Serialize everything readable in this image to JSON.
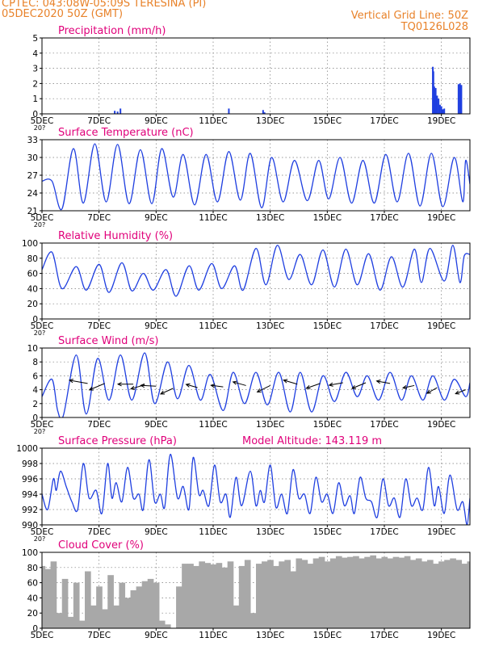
{
  "header": {
    "line1": "CPTEC:   043:08W-05:09S   TERESINA (PI)",
    "line2": "05DEC2020 50Z (GMT)",
    "grid_note": "Vertical Grid Line: 50Z",
    "code": "TQ0126L028"
  },
  "colors": {
    "header": "#e8822a",
    "panel_title": "#e0007a",
    "series": "#1f3fe0",
    "cloud": "#a8a8a8",
    "wind_arrow": "#000000"
  },
  "x_axis": {
    "tick_labels": [
      "5DEC",
      "7DEC",
      "9DEC",
      "11DEC",
      "13DEC",
      "15DEC",
      "17DEC",
      "19DEC"
    ],
    "tick_days": [
      5,
      7,
      9,
      11,
      13,
      15,
      17,
      19
    ],
    "range_days": [
      5,
      20
    ],
    "stub_label": "20?"
  },
  "chart_data": [
    {
      "id": "precipitation",
      "type": "bar",
      "title": "Precipitation (mm/h)",
      "ylim": [
        0,
        5
      ],
      "yticks": [
        0,
        1,
        2,
        3,
        4,
        5
      ],
      "x": [
        7.55,
        7.65,
        7.75,
        11.55,
        12.75,
        12.8,
        18.7,
        18.72,
        18.75,
        18.78,
        18.8,
        18.85,
        18.9,
        18.95,
        19.0,
        19.05,
        19.1,
        19.6,
        19.65,
        19.7
      ],
      "values": [
        0.2,
        0.15,
        0.35,
        0.35,
        0.25,
        0.1,
        3.1,
        2.8,
        1.8,
        1.6,
        1.7,
        1.2,
        1.0,
        0.6,
        0.5,
        0.3,
        0.35,
        1.95,
        2.0,
        1.9
      ]
    },
    {
      "id": "temperature",
      "type": "line",
      "title": "Surface Temperature (nC)",
      "ylim": [
        21,
        33
      ],
      "yticks": [
        21,
        24,
        27,
        30,
        33
      ],
      "peak_days": [
        5.35,
        6.1,
        6.85,
        7.65,
        8.45,
        9.2,
        9.95,
        10.75,
        11.55,
        12.3,
        13.05,
        13.85,
        14.7,
        15.45,
        16.25,
        17.05,
        17.85,
        18.65,
        19.45,
        19.85
      ],
      "peak_values": [
        26,
        31.5,
        32.3,
        32.2,
        31.3,
        31.5,
        30.5,
        30.5,
        31,
        30.7,
        30,
        29.5,
        29.5,
        30,
        29.5,
        30.5,
        30.7,
        30.7,
        30,
        29.5
      ],
      "trough_days": [
        5.0,
        5.7,
        6.45,
        7.25,
        8.05,
        8.85,
        9.6,
        10.35,
        11.15,
        11.95,
        12.7,
        13.45,
        14.3,
        15.05,
        15.85,
        16.65,
        17.45,
        18.25,
        19.05,
        19.75,
        20.0
      ],
      "trough_values": [
        26,
        21.3,
        22.3,
        22.5,
        22.2,
        22.2,
        23.3,
        22,
        22.5,
        22.8,
        21.5,
        22.5,
        22.7,
        23,
        22.3,
        22.3,
        22.5,
        21.8,
        21.7,
        22.5,
        25.5
      ]
    },
    {
      "id": "humidity",
      "type": "line",
      "title": "Relative Humidity (%)",
      "ylim": [
        0,
        100
      ],
      "yticks": [
        0,
        20,
        40,
        60,
        80,
        100
      ],
      "peak_days": [
        5.0,
        5.35,
        6.2,
        7.0,
        7.8,
        8.55,
        9.35,
        10.15,
        10.95,
        11.75,
        12.5,
        13.25,
        14.05,
        14.85,
        15.65,
        16.45,
        17.25,
        18.05,
        18.6,
        19.4,
        19.8,
        20.0
      ],
      "peak_values": [
        65,
        88,
        69,
        72,
        74,
        60,
        65,
        70,
        73,
        70,
        93,
        97,
        85,
        91,
        92,
        86,
        82,
        92,
        93,
        97,
        83,
        85
      ],
      "trough_days": [
        5.7,
        6.55,
        7.35,
        8.15,
        8.9,
        9.7,
        10.5,
        11.3,
        12.05,
        12.85,
        13.65,
        14.45,
        15.25,
        16.05,
        16.85,
        17.65,
        18.3,
        19.1,
        19.65
      ],
      "trough_values": [
        40,
        38,
        35,
        37,
        38,
        30,
        38,
        40,
        38,
        45,
        52,
        45,
        42,
        45,
        38,
        42,
        48,
        50,
        48
      ]
    },
    {
      "id": "wind",
      "type": "line",
      "title": "Surface Wind (m/s)",
      "ylim": [
        0,
        10
      ],
      "yticks": [
        0,
        2,
        4,
        6,
        8,
        10
      ],
      "peak_days": [
        5.0,
        5.35,
        6.2,
        6.95,
        7.75,
        8.6,
        9.4,
        10.15,
        10.9,
        11.7,
        12.5,
        13.3,
        14.05,
        14.85,
        15.65,
        16.4,
        17.2,
        17.95,
        18.7,
        19.45,
        20.0
      ],
      "peak_values": [
        3,
        5.5,
        9,
        8.5,
        9,
        9.3,
        8,
        7.5,
        6.2,
        6.5,
        6.5,
        6.5,
        6.5,
        6,
        6.5,
        6,
        6.5,
        6,
        6,
        5.5,
        5
      ],
      "trough_days": [
        5.55,
        5.75,
        6.55,
        7.35,
        8.15,
        8.95,
        9.75,
        10.55,
        11.35,
        12.1,
        12.9,
        13.7,
        14.45,
        15.25,
        16.05,
        16.8,
        17.6,
        18.35,
        19.1,
        19.85
      ],
      "trough_values": [
        1,
        0.3,
        0.5,
        2.5,
        2.5,
        2.0,
        2.7,
        2.5,
        1.0,
        2.0,
        1.8,
        0.8,
        0.8,
        2.3,
        3,
        2.5,
        2.5,
        2.5,
        2.5,
        3
      ],
      "arrow_days": [
        6.6,
        7.2,
        8.2,
        8.6,
        9.0,
        9.6,
        10.45,
        11.35,
        12.15,
        13.0,
        13.95,
        14.75,
        15.55,
        16.35,
        17.2,
        18.05,
        18.85,
        19.85
      ],
      "arrow_values": [
        4.9,
        4.9,
        4.8,
        4.7,
        4.5,
        4.2,
        4.3,
        4.4,
        4.6,
        4.6,
        4.8,
        4.9,
        5.0,
        5.0,
        4.9,
        4.6,
        4.3,
        4.0
      ],
      "arrow_u": [
        -4.5,
        -3.8,
        -3.8,
        -3.4,
        -3.8,
        -3.1,
        -2.8,
        -3.0,
        -3.2,
        -3.2,
        -3.4,
        -3.4,
        -3.4,
        -3.4,
        -3.3,
        -2.8,
        -2.5,
        -2.5
      ],
      "arrow_v": [
        0.8,
        -1.6,
        0,
        -1.0,
        0.2,
        -1.4,
        0.8,
        0.4,
        0.9,
        -1.6,
        1.0,
        -1.2,
        -0.6,
        -1.4,
        0.6,
        -0.6,
        -1.4,
        -1.0
      ]
    },
    {
      "id": "pressure",
      "type": "line",
      "title": "Surface Pressure (hPa)",
      "annotation": "Model Altitude: 143.119 m",
      "ylim": [
        990,
        1000
      ],
      "yticks": [
        990,
        992,
        994,
        996,
        998,
        1000
      ],
      "peak_days": [
        5.0,
        5.4,
        5.65,
        6.05,
        6.45,
        6.9,
        7.3,
        7.6,
        8.0,
        8.4,
        8.75,
        9.15,
        9.5,
        9.95,
        10.3,
        10.65,
        11.05,
        11.45,
        11.8,
        12.3,
        12.65,
        13.0,
        13.4,
        13.8,
        14.2,
        14.6,
        15.0,
        15.4,
        15.8,
        16.15,
        16.55,
        16.95,
        17.35,
        17.75,
        18.15,
        18.55,
        18.9,
        19.3,
        19.75,
        20.0
      ],
      "peak_values": [
        994,
        996,
        997,
        993,
        998,
        994.5,
        998,
        995.5,
        997.5,
        994,
        998.5,
        994,
        999.2,
        995,
        998.8,
        994.5,
        997.8,
        994,
        996.2,
        997,
        994.5,
        997.8,
        994,
        997.2,
        994,
        996.2,
        994,
        995.5,
        993.8,
        996.2,
        993,
        996,
        993.5,
        996,
        993.5,
        997.5,
        995,
        996.5,
        993,
        993.5
      ],
      "trough_days": [
        5.2,
        5.5,
        5.85,
        6.25,
        6.65,
        7.1,
        7.45,
        7.8,
        8.2,
        8.55,
        8.95,
        9.3,
        9.75,
        10.15,
        10.5,
        10.85,
        11.25,
        11.6,
        12.0,
        12.5,
        12.8,
        13.2,
        13.6,
        14.0,
        14.4,
        14.8,
        15.2,
        15.6,
        15.95,
        16.35,
        16.75,
        17.15,
        17.55,
        17.95,
        18.35,
        18.75,
        19.1,
        19.55,
        19.9
      ],
      "trough_values": [
        992,
        994.5,
        995,
        992,
        993.5,
        991.5,
        993.5,
        993,
        993.5,
        992,
        993,
        992.3,
        993.5,
        992,
        994,
        992.5,
        993,
        991,
        992.5,
        992.5,
        993,
        992.3,
        991.5,
        993.5,
        991.5,
        993,
        991.5,
        992.5,
        991.5,
        993.5,
        991,
        992.5,
        991,
        992.5,
        992,
        992.5,
        991.5,
        992,
        990
      ]
    },
    {
      "id": "cloud",
      "type": "area",
      "title": "Cloud Cover (%)",
      "ylim": [
        0,
        100
      ],
      "yticks": [
        0,
        20,
        40,
        60,
        80,
        100
      ],
      "x": [
        5.0,
        5.2,
        5.4,
        5.6,
        5.8,
        6.0,
        6.2,
        6.4,
        6.6,
        6.8,
        7.0,
        7.2,
        7.4,
        7.6,
        7.8,
        8.0,
        8.2,
        8.4,
        8.6,
        8.8,
        9.0,
        9.2,
        9.4,
        9.6,
        9.8,
        10.0,
        10.2,
        10.4,
        10.6,
        10.8,
        11.0,
        11.2,
        11.4,
        11.6,
        11.8,
        12.0,
        12.2,
        12.4,
        12.6,
        12.8,
        13.0,
        13.2,
        13.4,
        13.6,
        13.8,
        14.0,
        14.2,
        14.4,
        14.6,
        14.8,
        15.0,
        15.2,
        15.4,
        15.6,
        15.8,
        16.0,
        16.2,
        16.4,
        16.6,
        16.8,
        17.0,
        17.2,
        17.4,
        17.6,
        17.8,
        18.0,
        18.2,
        18.4,
        18.6,
        18.8,
        19.0,
        19.2,
        19.4,
        19.6,
        19.8,
        20.0
      ],
      "values": [
        82,
        78,
        88,
        20,
        65,
        15,
        60,
        10,
        75,
        30,
        55,
        25,
        70,
        30,
        60,
        40,
        50,
        55,
        62,
        65,
        60,
        10,
        5,
        0,
        55,
        85,
        85,
        82,
        88,
        86,
        84,
        86,
        80,
        88,
        30,
        82,
        90,
        20,
        85,
        88,
        90,
        82,
        88,
        90,
        75,
        92,
        90,
        85,
        92,
        94,
        88,
        92,
        95,
        93,
        94,
        95,
        92,
        94,
        96,
        92,
        94,
        92,
        94,
        93,
        95,
        90,
        92,
        88,
        90,
        85,
        88,
        90,
        92,
        90,
        85,
        88
      ]
    }
  ]
}
